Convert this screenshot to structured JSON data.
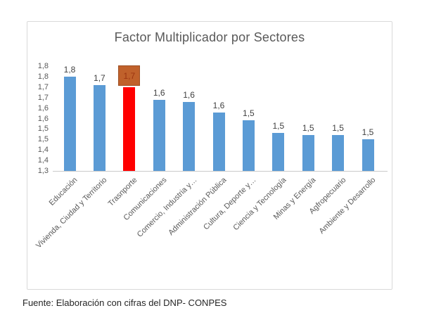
{
  "chart_data": {
    "type": "bar",
    "title": "Factor Multiplicador por Sectores",
    "categories": [
      "Educación",
      "Vivienda, Ciudad y Territorio",
      "Trasnporte",
      "Comunicaciones",
      "Comercio, Industria y…",
      "Administración Pública",
      "Cultura, Deporte y…",
      "Ciencia y Tecnología",
      "Minas y Energía",
      "Agfropecuario",
      "Ambiente y Desarrollo"
    ],
    "values": [
      1.75,
      1.71,
      1.7,
      1.64,
      1.63,
      1.58,
      1.54,
      1.48,
      1.47,
      1.47,
      1.45
    ],
    "value_labels": [
      "1,8",
      "1,7",
      "1,7",
      "1,6",
      "1,6",
      "1,6",
      "1,5",
      "1,5",
      "1,5",
      "1,5",
      "1,5"
    ],
    "y_tick_labels": [
      "1,8",
      "1,8",
      "1,7",
      "1,7",
      "1,6",
      "1,6",
      "1,5",
      "1,5",
      "1,4",
      "1,4",
      "1,3"
    ],
    "ylim": [
      1.3,
      1.8
    ],
    "y_tick_step": 0.05,
    "grid": false,
    "legend": "none",
    "xlabel": "",
    "ylabel": "",
    "decimal_separator": ",",
    "bar_color": "#5b9bd5",
    "highlight_index": 2,
    "highlight_bar_color": "#ff0000",
    "highlight_badge_fill": "#c0612b",
    "highlight_badge_text_color": "#9c3511",
    "text_color": "#595959",
    "value_label_color": "#404040",
    "axis_line_color": "#c9c9c9"
  },
  "source": "Fuente: Elaboración con cifras del DNP- CONPES"
}
